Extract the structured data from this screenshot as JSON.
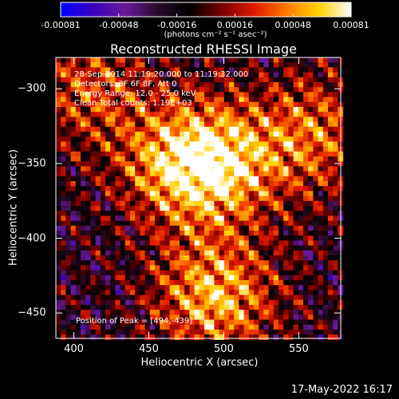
{
  "chart_data": {
    "type": "heatmap",
    "title": "Reconstructed RHESSI Image",
    "xlabel": "Heliocentric X (arcsec)",
    "ylabel": "Heliocentric Y (arcsec)",
    "xlim": [
      388,
      578
    ],
    "ylim": [
      -467,
      -279
    ],
    "x_ticks": [
      400,
      450,
      500,
      550
    ],
    "y_ticks": [
      -300,
      -350,
      -400,
      -450
    ],
    "colorbar": {
      "min": -0.00081,
      "max": 0.00081,
      "ticks": [
        "-0.00081",
        "-0.00048",
        "-0.00016",
        "0.00016",
        "0.00048",
        "0.00081"
      ],
      "units": "(photons cm⁻² s⁻¹ asec⁻²)",
      "colormap": [
        "#0000ff",
        "#3a00c0",
        "#6a1a9a",
        "#2a0a2a",
        "#000000",
        "#7a0000",
        "#e01a00",
        "#ff7a00",
        "#ffd200",
        "#ffffff"
      ]
    },
    "annotations": [
      "28-Sep-2014 11:19:20.000 to 11:19:32.000",
      "Detectors: 3F 6F 8F, Att 0",
      "Energy Range: 12.0 - 25.0 keV",
      "Clean    Total counts: 1.19E+03"
    ],
    "peak_label": "Position of Peak = [494,-439]",
    "peak": {
      "x": 494,
      "y": -439
    },
    "bright_regions": [
      {
        "x": 470,
        "y": -350,
        "level": 0.9
      },
      {
        "x": 500,
        "y": -350,
        "level": 0.85
      },
      {
        "x": 494,
        "y": -439,
        "level": 1.0
      },
      {
        "x": 560,
        "y": -330,
        "level": 0.7
      },
      {
        "x": 410,
        "y": -300,
        "level": 0.6
      }
    ]
  },
  "footer": {
    "date": "17-May-2022 16:17"
  }
}
